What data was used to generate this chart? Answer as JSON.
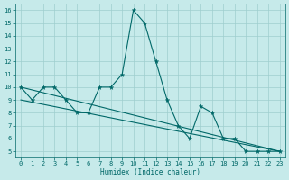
{
  "xlabel": "Humidex (Indice chaleur)",
  "xlim": [
    -0.5,
    23.5
  ],
  "ylim": [
    4.5,
    16.5
  ],
  "yticks": [
    5,
    6,
    7,
    8,
    9,
    10,
    11,
    12,
    13,
    14,
    15,
    16
  ],
  "xticks": [
    0,
    1,
    2,
    3,
    4,
    5,
    6,
    7,
    8,
    9,
    10,
    11,
    12,
    13,
    14,
    15,
    16,
    17,
    18,
    19,
    20,
    21,
    22,
    23
  ],
  "background_color": "#c6eaea",
  "grid_color": "#9ecece",
  "line_color": "#006868",
  "series": [
    {
      "x": [
        0,
        1,
        2,
        3,
        4,
        5,
        6,
        7,
        8,
        9,
        10,
        11,
        12,
        13,
        14,
        15,
        16,
        17,
        18,
        19,
        20,
        21,
        22,
        23
      ],
      "y": [
        10,
        9,
        10,
        10,
        9,
        8,
        8,
        10,
        10,
        11,
        16,
        15,
        12,
        9,
        7,
        6,
        8.5,
        8,
        6,
        6,
        5,
        5,
        5,
        5
      ],
      "has_markers": true
    },
    {
      "x": [
        0,
        23
      ],
      "y": [
        10,
        5
      ],
      "has_markers": false
    },
    {
      "x": [
        0,
        23
      ],
      "y": [
        9,
        5
      ],
      "has_markers": false
    }
  ]
}
